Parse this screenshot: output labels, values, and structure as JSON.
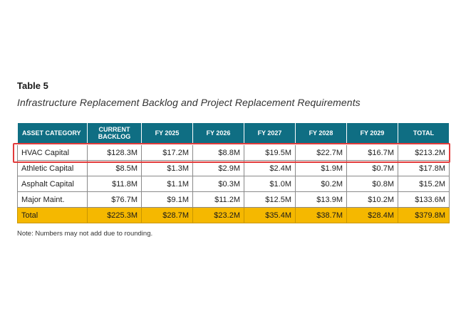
{
  "table_label": "Table 5",
  "caption": "Infrastructure Replacement Backlog and Project Replacement Requirements",
  "headers": [
    "ASSET CATEGORY",
    "CURRENT BACKLOG",
    "FY 2025",
    "FY 2026",
    "FY 2027",
    "FY 2028",
    "FY 2029",
    "TOTAL"
  ],
  "rows": [
    [
      "HVAC Capital",
      "$128.3M",
      "$17.2M",
      "$8.8M",
      "$19.5M",
      "$22.7M",
      "$16.7M",
      "$213.2M"
    ],
    [
      "Athletic Capital",
      "$8.5M",
      "$1.3M",
      "$2.9M",
      "$2.4M",
      "$1.9M",
      "$0.7M",
      "$17.8M"
    ],
    [
      "Asphalt Capital",
      "$11.8M",
      "$1.1M",
      "$0.3M",
      "$1.0M",
      "$0.2M",
      "$0.8M",
      "$15.2M"
    ],
    [
      "Major Maint.",
      "$76.7M",
      "$9.1M",
      "$11.2M",
      "$12.5M",
      "$13.9M",
      "$10.2M",
      "$133.6M"
    ]
  ],
  "total_row": [
    "Total",
    "$225.3M",
    "$28.7M",
    "$23.2M",
    "$35.4M",
    "$38.7M",
    "$28.4M",
    "$379.8M"
  ],
  "note": "Note: Numbers may not add due to rounding.",
  "colors": {
    "header_bg": "#0f6e83",
    "total_bg": "#f5b800",
    "highlight": "#e23b3b"
  }
}
